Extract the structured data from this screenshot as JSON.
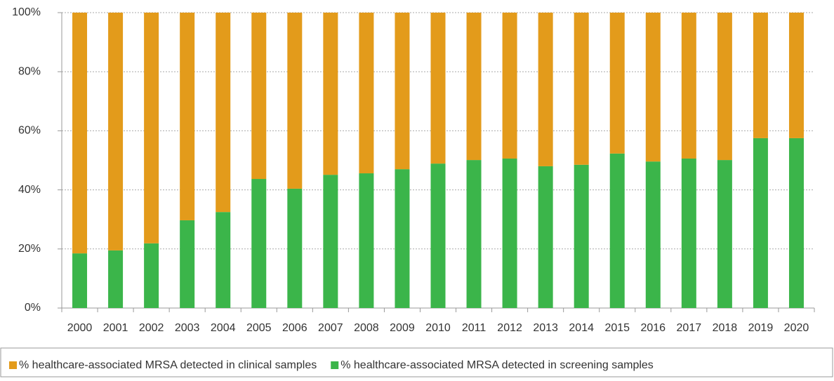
{
  "chart_data": {
    "type": "stacked_bar",
    "categories": [
      "2000",
      "2001",
      "2002",
      "2003",
      "2004",
      "2005",
      "2006",
      "2007",
      "2008",
      "2009",
      "2010",
      "2011",
      "2012",
      "2013",
      "2014",
      "2015",
      "2016",
      "2017",
      "2018",
      "2019",
      "2020"
    ],
    "series": [
      {
        "name": "% healthcare-associated MRSA detected in clinical samples",
        "color": "#e39b1b",
        "values": [
          81.5,
          80.5,
          78.1,
          70.3,
          67.5,
          56.3,
          59.6,
          54.9,
          54.4,
          53.0,
          51.1,
          49.9,
          49.4,
          52.0,
          51.5,
          47.7,
          50.4,
          49.4,
          49.9,
          42.5,
          42.5
        ]
      },
      {
        "name": "% healthcare-associated MRSA detected in screening samples",
        "color": "#3bb54a",
        "values": [
          18.5,
          19.5,
          21.9,
          29.7,
          32.5,
          43.7,
          40.4,
          45.1,
          45.6,
          47.0,
          48.9,
          50.1,
          50.6,
          48.0,
          48.5,
          52.3,
          49.6,
          50.6,
          50.1,
          57.5,
          57.5
        ]
      }
    ],
    "ylim": [
      0,
      100
    ],
    "yticks": [
      {
        "value": 0,
        "label": "0%"
      },
      {
        "value": 20,
        "label": "20%"
      },
      {
        "value": 40,
        "label": "40%"
      },
      {
        "value": 60,
        "label": "60%"
      },
      {
        "value": 80,
        "label": "80%"
      },
      {
        "value": 100,
        "label": "100%"
      }
    ],
    "grid": true,
    "legend": "bottom"
  }
}
